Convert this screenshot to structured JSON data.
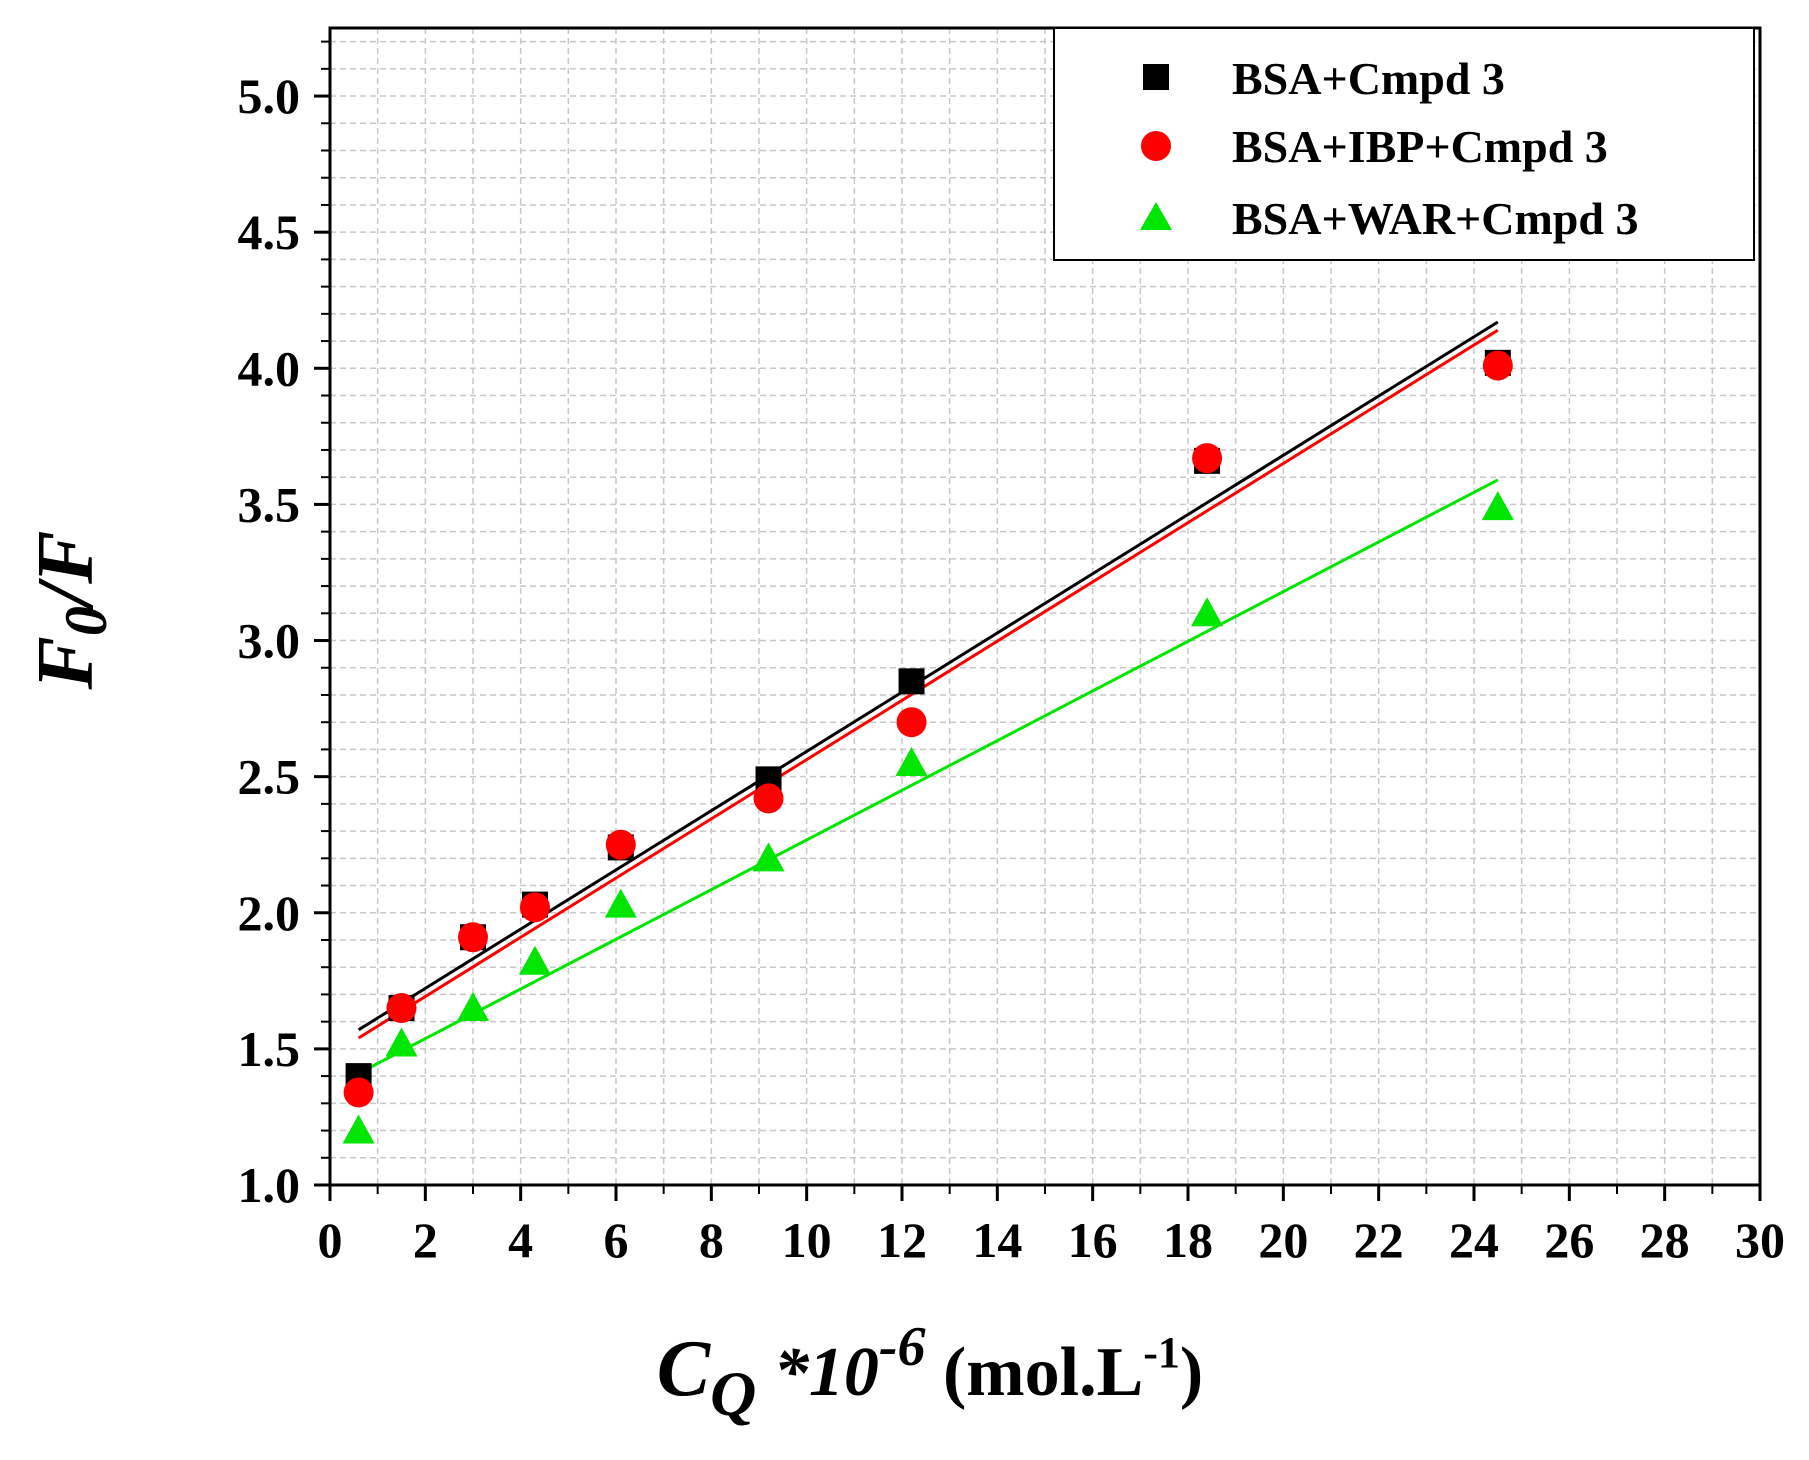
{
  "chart_data": {
    "type": "scatter",
    "title": "",
    "xlabel": {
      "symbol": "C",
      "subscript": "Q",
      "multiplier": " *10",
      "exponent": "-6",
      "unit": " (mol.L",
      "unit_exponent": "-1",
      "unit_close": ")"
    },
    "ylabel": {
      "numerator": "F",
      "subscript": "0",
      "slash_denominator": "/F"
    },
    "xlim": [
      0,
      30
    ],
    "ylim": [
      1.0,
      5.25
    ],
    "xticks": [
      "0",
      "2",
      "4",
      "6",
      "8",
      "10",
      "12",
      "14",
      "16",
      "18",
      "20",
      "22",
      "24",
      "26",
      "28",
      "30"
    ],
    "yticks": [
      "1.0",
      "1.5",
      "2.0",
      "2.5",
      "3.0",
      "3.5",
      "4.0",
      "4.5",
      "5.0"
    ],
    "grid": true,
    "legend_position": "top-right",
    "series": [
      {
        "name": "BSA+Cmpd 3",
        "color": "#000000",
        "marker": "square",
        "x": [
          0.6,
          1.5,
          3.0,
          4.3,
          6.1,
          9.2,
          12.2,
          18.4,
          24.5
        ],
        "y": [
          1.4,
          1.65,
          1.91,
          2.03,
          2.24,
          2.49,
          2.85,
          3.66,
          4.02
        ],
        "fit": {
          "x": [
            0.6,
            24.5
          ],
          "y": [
            1.57,
            4.17
          ]
        }
      },
      {
        "name": "BSA+IBP+Cmpd 3",
        "color": "#ff0000",
        "marker": "circle",
        "x": [
          0.6,
          1.5,
          3.0,
          4.3,
          6.1,
          9.2,
          12.2,
          18.4,
          24.5
        ],
        "y": [
          1.34,
          1.65,
          1.91,
          2.02,
          2.25,
          2.42,
          2.7,
          3.67,
          4.01
        ],
        "fit": {
          "x": [
            0.6,
            24.5
          ],
          "y": [
            1.54,
            4.14
          ]
        }
      },
      {
        "name": "BSA+WAR+Cmpd 3",
        "color": "#00e600",
        "marker": "triangle",
        "x": [
          0.6,
          1.5,
          3.0,
          4.3,
          6.1,
          9.2,
          12.2,
          18.4,
          24.5
        ],
        "y": [
          1.2,
          1.52,
          1.65,
          1.82,
          2.03,
          2.2,
          2.55,
          3.1,
          3.49
        ],
        "fit": {
          "x": [
            0.6,
            24.5
          ],
          "y": [
            1.41,
            3.59
          ]
        }
      }
    ]
  }
}
